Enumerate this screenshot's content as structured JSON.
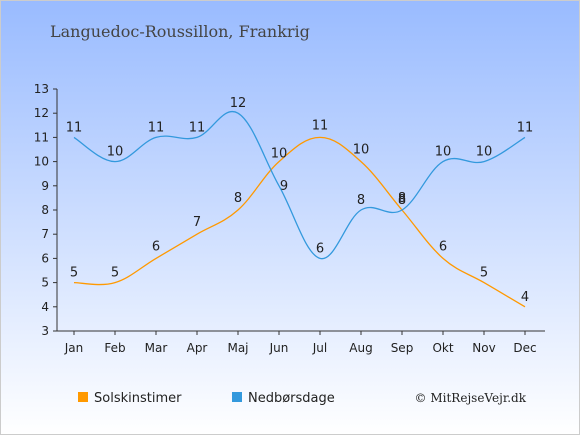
{
  "chart_data": {
    "type": "line",
    "title": "Languedoc-Roussillon, Frankrig",
    "categories": [
      "Jan",
      "Feb",
      "Mar",
      "Apr",
      "Maj",
      "Jun",
      "Jul",
      "Aug",
      "Sep",
      "Okt",
      "Nov",
      "Dec"
    ],
    "ylim": [
      3,
      13
    ],
    "yticks": [
      3,
      4,
      5,
      6,
      7,
      8,
      9,
      10,
      11,
      12,
      13
    ],
    "series": [
      {
        "name": "Solskinstimer",
        "color": "#ff9900",
        "values": [
          5,
          5,
          6,
          7,
          8,
          10,
          11,
          10,
          8,
          6,
          5,
          4
        ]
      },
      {
        "name": "Nedbørsdage",
        "color": "#3399dd",
        "values": [
          11,
          10,
          11,
          11,
          12,
          9,
          6,
          8,
          8,
          10,
          10,
          11
        ]
      }
    ],
    "legend_position": "bottom",
    "grid": false
  },
  "credit": "© MitRejseVejr.dk",
  "colors": {
    "background_top": "#99bbff",
    "background_bottom": "#ffffff"
  }
}
